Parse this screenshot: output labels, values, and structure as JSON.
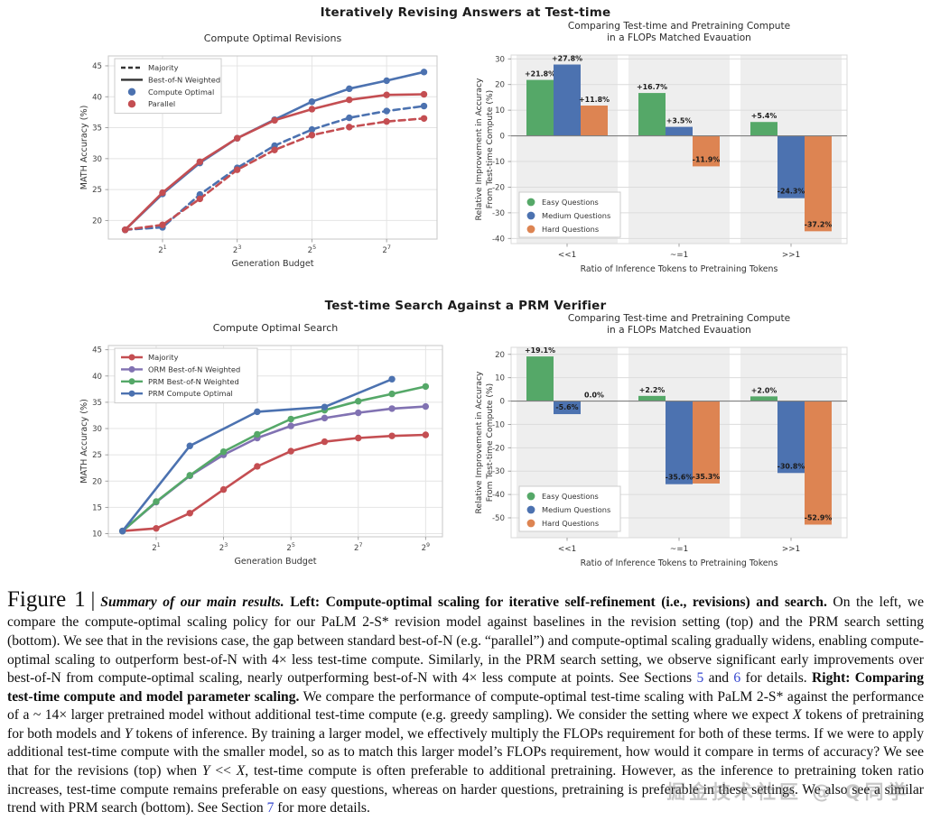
{
  "headers": {
    "top": "Iteratively Revising Answers at Test-time",
    "bottom": "Test-time Search Against a PRM Verifier"
  },
  "colors": {
    "blue": "#4C72B0",
    "red": "#C44E52",
    "green": "#55A868",
    "purple": "#8172B2",
    "orange": "#DD8452",
    "grid": "#e4e4e4",
    "spine": "#cccccc",
    "band": "#eeeeee",
    "zero_line": "#7f7f7f",
    "tick_text": "#444444",
    "title_text": "#2b2b2b",
    "link": "#3244ce"
  },
  "chart_data": [
    {
      "panel": "rev_line",
      "type": "line",
      "title": "Compute Optimal Revisions",
      "xlabel": "Generation Budget",
      "ylabel": "MATH Accuracy (%)",
      "xlim": [
        -0.45,
        8.35
      ],
      "ylim": [
        17.0,
        46.6
      ],
      "xticks": [
        {
          "v": 1,
          "t": "2^1"
        },
        {
          "v": 3,
          "t": "2^3"
        },
        {
          "v": 5,
          "t": "2^5"
        },
        {
          "v": 7,
          "t": "2^7"
        }
      ],
      "yticks": [
        20,
        25,
        30,
        35,
        40,
        45
      ],
      "legend": {
        "position": "top-left",
        "w": 118,
        "items": [
          {
            "label": "Majority",
            "kind": "dash",
            "color": "#333333"
          },
          {
            "label": "Best-of-N Weighted",
            "kind": "line",
            "color": "#333333"
          },
          {
            "label": "Compute Optimal",
            "kind": "dot",
            "color": "#4C72B0"
          },
          {
            "label": "Parallel",
            "kind": "dot",
            "color": "#C44E52"
          }
        ]
      },
      "series": [
        {
          "name": "Compute Optimal Majority",
          "color": "#4C72B0",
          "dash": true,
          "x": [
            0,
            1,
            2,
            3,
            4,
            5,
            6,
            7,
            8
          ],
          "y": [
            18.5,
            18.9,
            24.2,
            28.5,
            32.1,
            34.7,
            36.6,
            37.7,
            38.5
          ]
        },
        {
          "name": "Parallel Majority",
          "color": "#C44E52",
          "dash": true,
          "x": [
            0,
            1,
            2,
            3,
            4,
            5,
            6,
            7,
            8
          ],
          "y": [
            18.5,
            19.3,
            23.5,
            28.2,
            31.4,
            33.8,
            35.1,
            36.0,
            36.5
          ]
        },
        {
          "name": "Compute Optimal Best-of-N Weighted",
          "color": "#4C72B0",
          "dash": false,
          "x": [
            0,
            1,
            2,
            3,
            4,
            5,
            6,
            7,
            8
          ],
          "y": [
            18.5,
            24.3,
            29.3,
            33.3,
            36.3,
            39.2,
            41.3,
            42.6,
            44.0
          ]
        },
        {
          "name": "Parallel Best-of-N Weighted",
          "color": "#C44E52",
          "dash": false,
          "x": [
            0,
            1,
            2,
            3,
            4,
            5,
            6,
            7,
            8
          ],
          "y": [
            18.5,
            24.5,
            29.5,
            33.3,
            36.2,
            38.0,
            39.5,
            40.3,
            40.4
          ]
        }
      ]
    },
    {
      "panel": "rev_bar",
      "type": "bar",
      "title": "Comparing Test-time and Pretraining Compute\nin a FLOPs Matched Evauation",
      "xlabel": "Ratio of Inference Tokens to Pretraining Tokens",
      "ylabel": "Relative Improvement in Accuracy\nFrom Test-time Compute (%)",
      "categories": [
        "<<1",
        "~=1",
        ">>1"
      ],
      "ylim": [
        -42.0,
        31.5
      ],
      "yticks": [
        30,
        20,
        10,
        0,
        -10,
        -20,
        -30,
        -40
      ],
      "legend": {
        "position": "bottom-left",
        "items": [
          "Easy Questions",
          "Medium Questions",
          "Hard Questions"
        ]
      },
      "series": [
        {
          "name": "Easy Questions",
          "color": "#55A868",
          "values": [
            21.8,
            16.7,
            5.4
          ],
          "labels": [
            "+21.8%",
            "+16.7%",
            "+5.4%"
          ]
        },
        {
          "name": "Medium Questions",
          "color": "#4C72B0",
          "values": [
            27.8,
            3.5,
            -24.3
          ],
          "labels": [
            "+27.8%",
            "+3.5%",
            "-24.3%"
          ]
        },
        {
          "name": "Hard Questions",
          "color": "#DD8452",
          "values": [
            11.8,
            -11.9,
            -37.2
          ],
          "labels": [
            "+11.8%",
            "-11.9%",
            "-37.2%"
          ]
        }
      ]
    },
    {
      "panel": "srch_line",
      "type": "line",
      "title": "Compute Optimal Search",
      "xlabel": "Generation Budget",
      "ylabel": "MATH Accuracy (%)",
      "xlim": [
        -0.42,
        9.5
      ],
      "ylim": [
        9.4,
        45.8
      ],
      "xticks": [
        {
          "v": 1,
          "t": "2^1"
        },
        {
          "v": 3,
          "t": "2^3"
        },
        {
          "v": 5,
          "t": "2^5"
        },
        {
          "v": 7,
          "t": "2^7"
        },
        {
          "v": 9,
          "t": "2^9"
        }
      ],
      "yticks": [
        10,
        15,
        20,
        25,
        30,
        35,
        40,
        45
      ],
      "legend": {
        "position": "top-left",
        "w": 158,
        "items": [
          {
            "label": "Majority",
            "kind": "linedot",
            "color": "#C44E52"
          },
          {
            "label": "ORM Best-of-N Weighted",
            "kind": "linedot",
            "color": "#8172B2"
          },
          {
            "label": "PRM Best-of-N Weighted",
            "kind": "linedot",
            "color": "#55A868"
          },
          {
            "label": "PRM Compute Optimal",
            "kind": "linedot",
            "color": "#4C72B0"
          }
        ]
      },
      "series": [
        {
          "name": "Majority",
          "color": "#C44E52",
          "dash": false,
          "x": [
            0,
            1,
            2,
            3,
            4,
            5,
            6,
            7,
            8,
            9
          ],
          "y": [
            10.5,
            11.0,
            13.9,
            18.4,
            22.8,
            25.7,
            27.5,
            28.2,
            28.6,
            28.8
          ]
        },
        {
          "name": "ORM Best-of-N Weighted",
          "color": "#8172B2",
          "dash": false,
          "x": [
            0,
            1,
            2,
            3,
            4,
            5,
            6,
            7,
            8,
            9
          ],
          "y": [
            10.5,
            16.0,
            21.0,
            25.0,
            28.2,
            30.5,
            32.0,
            33.0,
            33.8,
            34.2
          ]
        },
        {
          "name": "PRM Best-of-N Weighted",
          "color": "#55A868",
          "dash": false,
          "x": [
            0,
            1,
            2,
            3,
            4,
            5,
            6,
            7,
            8,
            9
          ],
          "y": [
            10.5,
            16.1,
            21.1,
            25.6,
            28.9,
            31.8,
            33.5,
            35.2,
            36.6,
            38.0
          ]
        },
        {
          "name": "PRM Compute Optimal",
          "color": "#4C72B0",
          "dash": false,
          "x": [
            0,
            2,
            4,
            6,
            8
          ],
          "y": [
            10.5,
            26.7,
            33.2,
            34.1,
            39.4
          ]
        }
      ]
    },
    {
      "panel": "srch_bar",
      "type": "bar",
      "title": "Comparing Test-time and Pretraining Compute\nin a FLOPs Matched Evauation",
      "xlabel": "Ratio of Inference Tokens to Pretraining Tokens",
      "ylabel": "Relative Improvement in Accuracy\nFrom Test-time Compute (%)",
      "categories": [
        "<<1",
        "~=1",
        ">>1"
      ],
      "ylim": [
        -58.5,
        23.0
      ],
      "yticks": [
        20,
        10,
        0,
        -10,
        -20,
        -30,
        -40,
        -50
      ],
      "legend": {
        "position": "bottom-left",
        "items": [
          "Easy Questions",
          "Medium Questions",
          "Hard Questions"
        ]
      },
      "series": [
        {
          "name": "Easy Questions",
          "color": "#55A868",
          "values": [
            19.1,
            2.2,
            2.0
          ],
          "labels": [
            "+19.1%",
            "+2.2%",
            "+2.0%"
          ]
        },
        {
          "name": "Medium Questions",
          "color": "#4C72B0",
          "values": [
            -5.6,
            -35.6,
            -30.8
          ],
          "labels": [
            "-5.6%",
            "-35.6%",
            "-30.8%"
          ]
        },
        {
          "name": "Hard Questions",
          "color": "#DD8452",
          "values": [
            0.0,
            -35.3,
            -52.9
          ],
          "labels": [
            "0.0%",
            "-35.3%",
            "-52.9%"
          ]
        }
      ]
    }
  ],
  "caption": {
    "segments": [
      {
        "t": "Figure 1",
        "s": "figlabel"
      },
      {
        "t": "|",
        "s": "sep"
      },
      {
        "t": "Summary of our main results.",
        "s": "bi"
      },
      {
        "t": " ",
        "s": "n"
      },
      {
        "t": "Left: Compute-optimal scaling for iterative self-refinement (i.e., revisions) and search.",
        "s": "b"
      },
      {
        "t": " On the left, we compare the compute-optimal scaling policy for our PaLM 2-S* revision model against baselines in the revision setting (top) and the PRM search setting (bottom). We see that in the revisions case, the gap between standard best-of-N (e.g. “parallel”) and compute-optimal scaling gradually widens, enabling compute-optimal scaling to outperform best-of-N with 4× less test-time compute. Similarly, in the PRM search setting, we observe significant early improvements over best-of-N from compute-optimal scaling, nearly outperforming best-of-N with 4× less compute at points. See Sections ",
        "s": "n"
      },
      {
        "t": "5",
        "s": "link"
      },
      {
        "t": " and ",
        "s": "n"
      },
      {
        "t": "6",
        "s": "link"
      },
      {
        "t": " for details. ",
        "s": "n"
      },
      {
        "t": "Right: Comparing test-time compute and model parameter scaling.",
        "s": "b"
      },
      {
        "t": " We compare the performance of compute-optimal test-time scaling with PaLM 2-S* against the performance of a ~ 14× larger pretrained model without additional test-time compute (e.g. greedy sampling). We consider the setting where we expect ",
        "s": "n"
      },
      {
        "t": "X",
        "s": "i"
      },
      {
        "t": " tokens of pretraining for both models and ",
        "s": "n"
      },
      {
        "t": "Y",
        "s": "i"
      },
      {
        "t": " tokens of inference. By training a larger model, we effectively multiply the FLOPs requirement for both of these terms. If we were to apply additional test-time compute with the smaller model, so as to match this larger model’s FLOPs requirement, how would it compare in terms of accuracy? We see that for the revisions (top) when ",
        "s": "n"
      },
      {
        "t": "Y",
        "s": "i"
      },
      {
        "t": " << ",
        "s": "n"
      },
      {
        "t": "X",
        "s": "i"
      },
      {
        "t": ", test-time compute is often preferable to additional pretraining. However, as the inference to pretraining token ratio increases, test-time compute remains preferable on easy questions, whereas on harder questions, pretraining is preferable in these settings. We also see a similar trend with PRM search (bottom). See Section ",
        "s": "n"
      },
      {
        "t": "7",
        "s": "link"
      },
      {
        "t": " for more details.",
        "s": "n"
      }
    ]
  },
  "watermark": {
    "text": "掘金技术社区 @ Q同学"
  }
}
